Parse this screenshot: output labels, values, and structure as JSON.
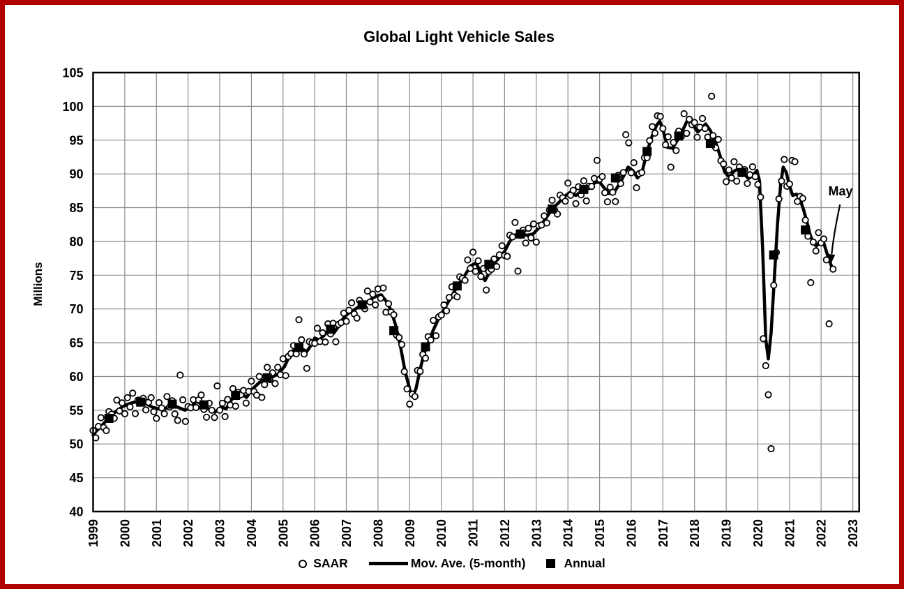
{
  "window": {
    "border_color": "#b00000",
    "background": "#ffffff"
  },
  "chart_data": {
    "type": "scatter",
    "title": "Global Light Vehicle Sales",
    "ylabel": "Millions",
    "ylim": [
      40,
      105
    ],
    "xlim": [
      1999,
      2023.2
    ],
    "yticks": [
      40,
      45,
      50,
      55,
      60,
      65,
      70,
      75,
      80,
      85,
      90,
      95,
      100,
      105
    ],
    "xticks": [
      1999,
      2000,
      2001,
      2002,
      2003,
      2004,
      2005,
      2006,
      2007,
      2008,
      2009,
      2010,
      2011,
      2012,
      2013,
      2014,
      2015,
      2016,
      2017,
      2018,
      2019,
      2020,
      2021,
      2022,
      2023
    ],
    "grid": true,
    "colors": {
      "fg": "#000000",
      "bg": "#ffffff",
      "grid": "#8c8c8c"
    },
    "annotation": {
      "label": "May",
      "points_to": [
        2022.375,
        75.9
      ]
    },
    "legend": {
      "position": "bottom",
      "items": [
        {
          "symbol": "open-circle",
          "label": "SAAR"
        },
        {
          "symbol": "thick-line",
          "label": "Mov. Ave. (5-month)"
        },
        {
          "symbol": "filled-square",
          "label": "Annual"
        }
      ]
    },
    "series": [
      {
        "name": "SAAR",
        "type": "scatter",
        "marker": "open-circle",
        "monthly_start": 1999.0,
        "monthly_end": 2022.333,
        "generation": "monthly points = moving-average value + cycled jitter, with explicit outlier points below",
        "scatter_jitter": [
          0.7,
          -0.9,
          0.4,
          1.3,
          -0.6,
          -1.5,
          0.9,
          0.1,
          -0.8,
          1.6,
          -0.3,
          0.6,
          -1.2,
          1.0,
          -0.5,
          1.4,
          -1.7,
          0.3,
          -0.1
        ],
        "explicit_points": [
          [
            2001.67,
            53.5
          ],
          [
            2001.75,
            60.2
          ],
          [
            2002.92,
            58.6
          ],
          [
            2004.33,
            56.9
          ],
          [
            2005.5,
            68.4
          ],
          [
            2005.75,
            61.2
          ],
          [
            2009.0,
            55.9
          ],
          [
            2011.0,
            78.4
          ],
          [
            2011.42,
            72.8
          ],
          [
            2012.33,
            82.8
          ],
          [
            2012.42,
            75.6
          ],
          [
            2014.92,
            92.0
          ],
          [
            2015.5,
            85.9
          ],
          [
            2015.83,
            95.8
          ],
          [
            2015.92,
            94.6
          ],
          [
            2016.83,
            98.6
          ],
          [
            2017.25,
            91.0
          ],
          [
            2017.67,
            98.9
          ],
          [
            2018.54,
            101.5
          ],
          [
            2020.17,
            65.6
          ],
          [
            2020.25,
            61.6
          ],
          [
            2020.33,
            57.3
          ],
          [
            2020.42,
            49.3
          ],
          [
            2021.08,
            92.0
          ],
          [
            2021.17,
            91.8
          ],
          [
            2021.67,
            73.9
          ],
          [
            2022.25,
            67.8
          ],
          [
            2022.375,
            75.9
          ]
        ]
      },
      {
        "name": "Mov. Ave. (5-month)",
        "type": "line",
        "points": [
          [
            1999.0,
            51.3
          ],
          [
            1999.08,
            51.8
          ],
          [
            1999.25,
            52.6
          ],
          [
            1999.42,
            53.5
          ],
          [
            1999.58,
            54.3
          ],
          [
            1999.75,
            54.9
          ],
          [
            1999.92,
            55.5
          ],
          [
            2000.1,
            55.9
          ],
          [
            2000.3,
            56.2
          ],
          [
            2000.5,
            56.2
          ],
          [
            2000.7,
            55.9
          ],
          [
            2000.9,
            55.4
          ],
          [
            2001.1,
            55.2
          ],
          [
            2001.3,
            55.3
          ],
          [
            2001.45,
            55.9
          ],
          [
            2001.6,
            55.6
          ],
          [
            2001.9,
            55.0
          ],
          [
            2002.1,
            55.5
          ],
          [
            2002.25,
            56.3
          ],
          [
            2002.4,
            56.0
          ],
          [
            2002.55,
            55.6
          ],
          [
            2002.7,
            55.0
          ],
          [
            2002.85,
            54.7
          ],
          [
            2003.05,
            55.5
          ],
          [
            2003.2,
            55.2
          ],
          [
            2003.35,
            56.4
          ],
          [
            2003.5,
            57.3
          ],
          [
            2003.7,
            57.4
          ],
          [
            2003.85,
            56.9
          ],
          [
            2004.0,
            58.0
          ],
          [
            2004.25,
            59.1
          ],
          [
            2004.45,
            59.7
          ],
          [
            2004.65,
            59.9
          ],
          [
            2004.85,
            60.4
          ],
          [
            2005.05,
            61.5
          ],
          [
            2005.25,
            63.5
          ],
          [
            2005.45,
            64.4
          ],
          [
            2005.6,
            64.1
          ],
          [
            2005.75,
            63.7
          ],
          [
            2005.9,
            64.7
          ],
          [
            2006.0,
            65.7
          ],
          [
            2006.15,
            65.4
          ],
          [
            2006.3,
            66.1
          ],
          [
            2006.45,
            67.0
          ],
          [
            2006.6,
            66.4
          ],
          [
            2006.75,
            67.4
          ],
          [
            2006.9,
            68.6
          ],
          [
            2007.05,
            69.3
          ],
          [
            2007.2,
            69.7
          ],
          [
            2007.35,
            70.2
          ],
          [
            2007.5,
            70.6
          ],
          [
            2007.65,
            71.0
          ],
          [
            2007.8,
            71.5
          ],
          [
            2007.95,
            71.9
          ],
          [
            2008.1,
            72.1
          ],
          [
            2008.25,
            71.2
          ],
          [
            2008.4,
            69.9
          ],
          [
            2008.55,
            67.7
          ],
          [
            2008.7,
            64.7
          ],
          [
            2008.85,
            60.9
          ],
          [
            2009.0,
            58.1
          ],
          [
            2009.1,
            57.1
          ],
          [
            2009.2,
            58.2
          ],
          [
            2009.32,
            60.8
          ],
          [
            2009.45,
            63.3
          ],
          [
            2009.6,
            65.1
          ],
          [
            2009.75,
            66.9
          ],
          [
            2009.9,
            68.4
          ],
          [
            2010.05,
            69.6
          ],
          [
            2010.2,
            70.9
          ],
          [
            2010.35,
            72.1
          ],
          [
            2010.5,
            73.3
          ],
          [
            2010.65,
            74.3
          ],
          [
            2010.8,
            75.4
          ],
          [
            2010.93,
            76.4
          ],
          [
            2011.1,
            76.8
          ],
          [
            2011.25,
            75.3
          ],
          [
            2011.38,
            74.2
          ],
          [
            2011.52,
            75.4
          ],
          [
            2011.68,
            76.8
          ],
          [
            2011.85,
            77.7
          ],
          [
            2012.0,
            78.5
          ],
          [
            2012.15,
            79.9
          ],
          [
            2012.3,
            80.9
          ],
          [
            2012.5,
            81.2
          ],
          [
            2012.7,
            80.9
          ],
          [
            2012.9,
            81.1
          ],
          [
            2013.1,
            82.1
          ],
          [
            2013.3,
            83.4
          ],
          [
            2013.5,
            84.8
          ],
          [
            2013.7,
            85.7
          ],
          [
            2013.9,
            86.7
          ],
          [
            2014.05,
            87.2
          ],
          [
            2014.25,
            86.8
          ],
          [
            2014.45,
            87.5
          ],
          [
            2014.65,
            87.8
          ],
          [
            2014.85,
            88.7
          ],
          [
            2015.0,
            88.8
          ],
          [
            2015.15,
            87.9
          ],
          [
            2015.3,
            87.1
          ],
          [
            2015.45,
            87.2
          ],
          [
            2015.6,
            88.3
          ],
          [
            2015.75,
            89.6
          ],
          [
            2015.9,
            91.0
          ],
          [
            2016.05,
            90.5
          ],
          [
            2016.2,
            89.4
          ],
          [
            2016.35,
            90.4
          ],
          [
            2016.5,
            93.3
          ],
          [
            2016.65,
            95.5
          ],
          [
            2016.8,
            97.2
          ],
          [
            2016.9,
            97.8
          ],
          [
            2017.0,
            96.6
          ],
          [
            2017.15,
            93.9
          ],
          [
            2017.3,
            93.8
          ],
          [
            2017.45,
            94.9
          ],
          [
            2017.6,
            96.2
          ],
          [
            2017.75,
            97.7
          ],
          [
            2017.85,
            97.8
          ],
          [
            2018.0,
            96.9
          ],
          [
            2018.1,
            96.2
          ],
          [
            2018.25,
            96.9
          ],
          [
            2018.35,
            97.4
          ],
          [
            2018.5,
            96.4
          ],
          [
            2018.65,
            94.9
          ],
          [
            2018.8,
            92.8
          ],
          [
            2018.95,
            90.3
          ],
          [
            2019.1,
            89.5
          ],
          [
            2019.25,
            90.4
          ],
          [
            2019.4,
            90.8
          ],
          [
            2019.55,
            90.1
          ],
          [
            2019.7,
            89.3
          ],
          [
            2019.85,
            89.8
          ],
          [
            2019.97,
            90.5
          ],
          [
            2020.05,
            89.0
          ],
          [
            2020.15,
            79.0
          ],
          [
            2020.25,
            65.5
          ],
          [
            2020.33,
            62.6
          ],
          [
            2020.42,
            66.5
          ],
          [
            2020.52,
            74.5
          ],
          [
            2020.62,
            82.5
          ],
          [
            2020.72,
            88.5
          ],
          [
            2020.8,
            91.0
          ],
          [
            2020.9,
            90.2
          ],
          [
            2021.0,
            88.2
          ],
          [
            2021.1,
            86.8
          ],
          [
            2021.22,
            87.0
          ],
          [
            2021.33,
            86.3
          ],
          [
            2021.45,
            84.6
          ],
          [
            2021.55,
            82.9
          ],
          [
            2021.65,
            81.0
          ],
          [
            2021.75,
            79.8
          ],
          [
            2021.85,
            79.3
          ],
          [
            2021.95,
            79.9
          ],
          [
            2022.05,
            80.3
          ],
          [
            2022.15,
            78.7
          ],
          [
            2022.25,
            77.3
          ],
          [
            2022.33,
            76.3
          ]
        ]
      },
      {
        "name": "Annual",
        "type": "scatter",
        "marker": "filled-square",
        "x_offset": 0.5,
        "points": [
          [
            1999,
            53.8
          ],
          [
            2000,
            56.2
          ],
          [
            2001,
            55.9
          ],
          [
            2002,
            55.8
          ],
          [
            2003,
            57.2
          ],
          [
            2004,
            59.8
          ],
          [
            2005,
            64.3
          ],
          [
            2006,
            67.0
          ],
          [
            2007,
            70.6
          ],
          [
            2008,
            66.8
          ],
          [
            2009,
            64.4
          ],
          [
            2010,
            73.4
          ],
          [
            2011,
            76.6
          ],
          [
            2012,
            81.1
          ],
          [
            2013,
            84.8
          ],
          [
            2014,
            87.7
          ],
          [
            2015,
            89.4
          ],
          [
            2016,
            93.3
          ],
          [
            2017,
            95.6
          ],
          [
            2018,
            94.5
          ],
          [
            2019,
            90.2
          ],
          [
            2020,
            78.0
          ],
          [
            2021,
            81.7
          ]
        ]
      }
    ]
  }
}
